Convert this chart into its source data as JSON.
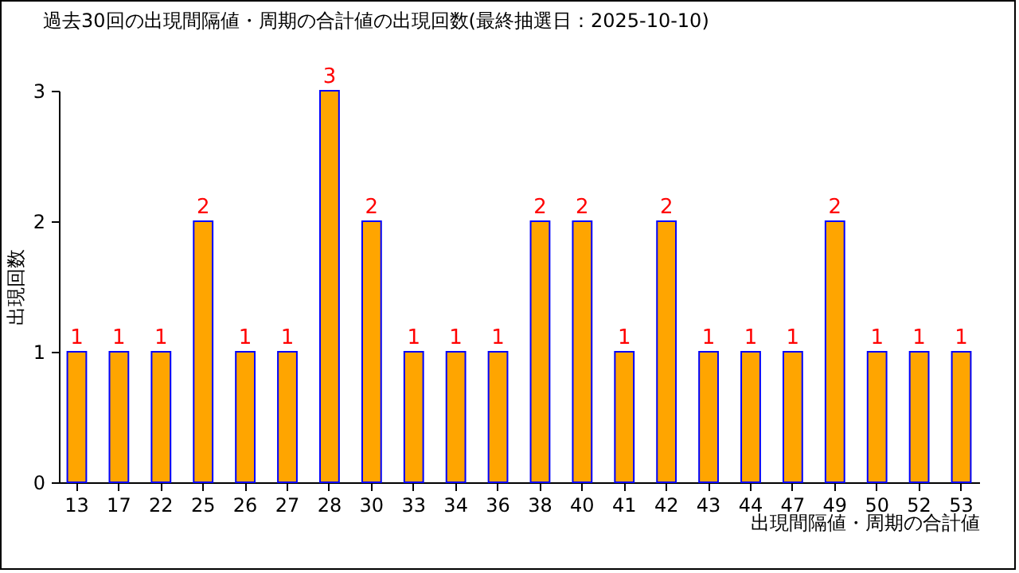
{
  "chart_data": {
    "type": "bar",
    "title": "過去30回の出現間隔値・周期の合計値の出現回数(最終抽選日：2025-10-10)",
    "xlabel": "出現間隔値・周期の合計値",
    "ylabel": "出現回数",
    "categories": [
      "13",
      "17",
      "22",
      "25",
      "26",
      "27",
      "28",
      "30",
      "33",
      "34",
      "36",
      "38",
      "40",
      "41",
      "42",
      "43",
      "44",
      "47",
      "49",
      "50",
      "52",
      "53"
    ],
    "values": [
      1,
      1,
      1,
      2,
      1,
      1,
      3,
      2,
      1,
      1,
      1,
      2,
      2,
      1,
      2,
      1,
      1,
      1,
      2,
      1,
      1,
      1
    ],
    "color": "#ffa500",
    "ylim": [
      0,
      3
    ],
    "yticks": [
      0,
      1,
      2,
      3
    ],
    "data_labels": true
  }
}
